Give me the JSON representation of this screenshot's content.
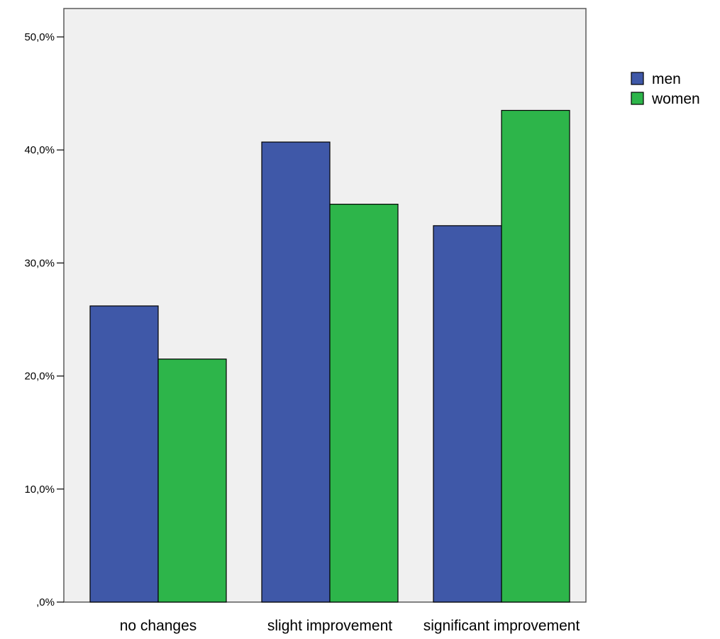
{
  "chart_data": {
    "type": "bar",
    "title": "",
    "xlabel": "",
    "ylabel": "",
    "categories": [
      "no changes",
      "slight improvement",
      "significant improvement"
    ],
    "series": [
      {
        "name": "men",
        "values": [
          26.2,
          40.7,
          33.3
        ],
        "color": "#3F58A8"
      },
      {
        "name": "women",
        "values": [
          21.5,
          35.2,
          43.5
        ],
        "color": "#2DB54A"
      }
    ],
    "ylim": [
      0,
      50
    ],
    "yticks": [
      {
        "value": 0,
        "label": ",0%"
      },
      {
        "value": 10,
        "label": "10,0%"
      },
      {
        "value": 20,
        "label": "20,0%"
      },
      {
        "value": 30,
        "label": "30,0%"
      },
      {
        "value": 40,
        "label": "40,0%"
      },
      {
        "value": 50,
        "label": "50,0%"
      }
    ],
    "grid": false,
    "legend_position": "right",
    "plot_background": "#F0F0F0"
  }
}
